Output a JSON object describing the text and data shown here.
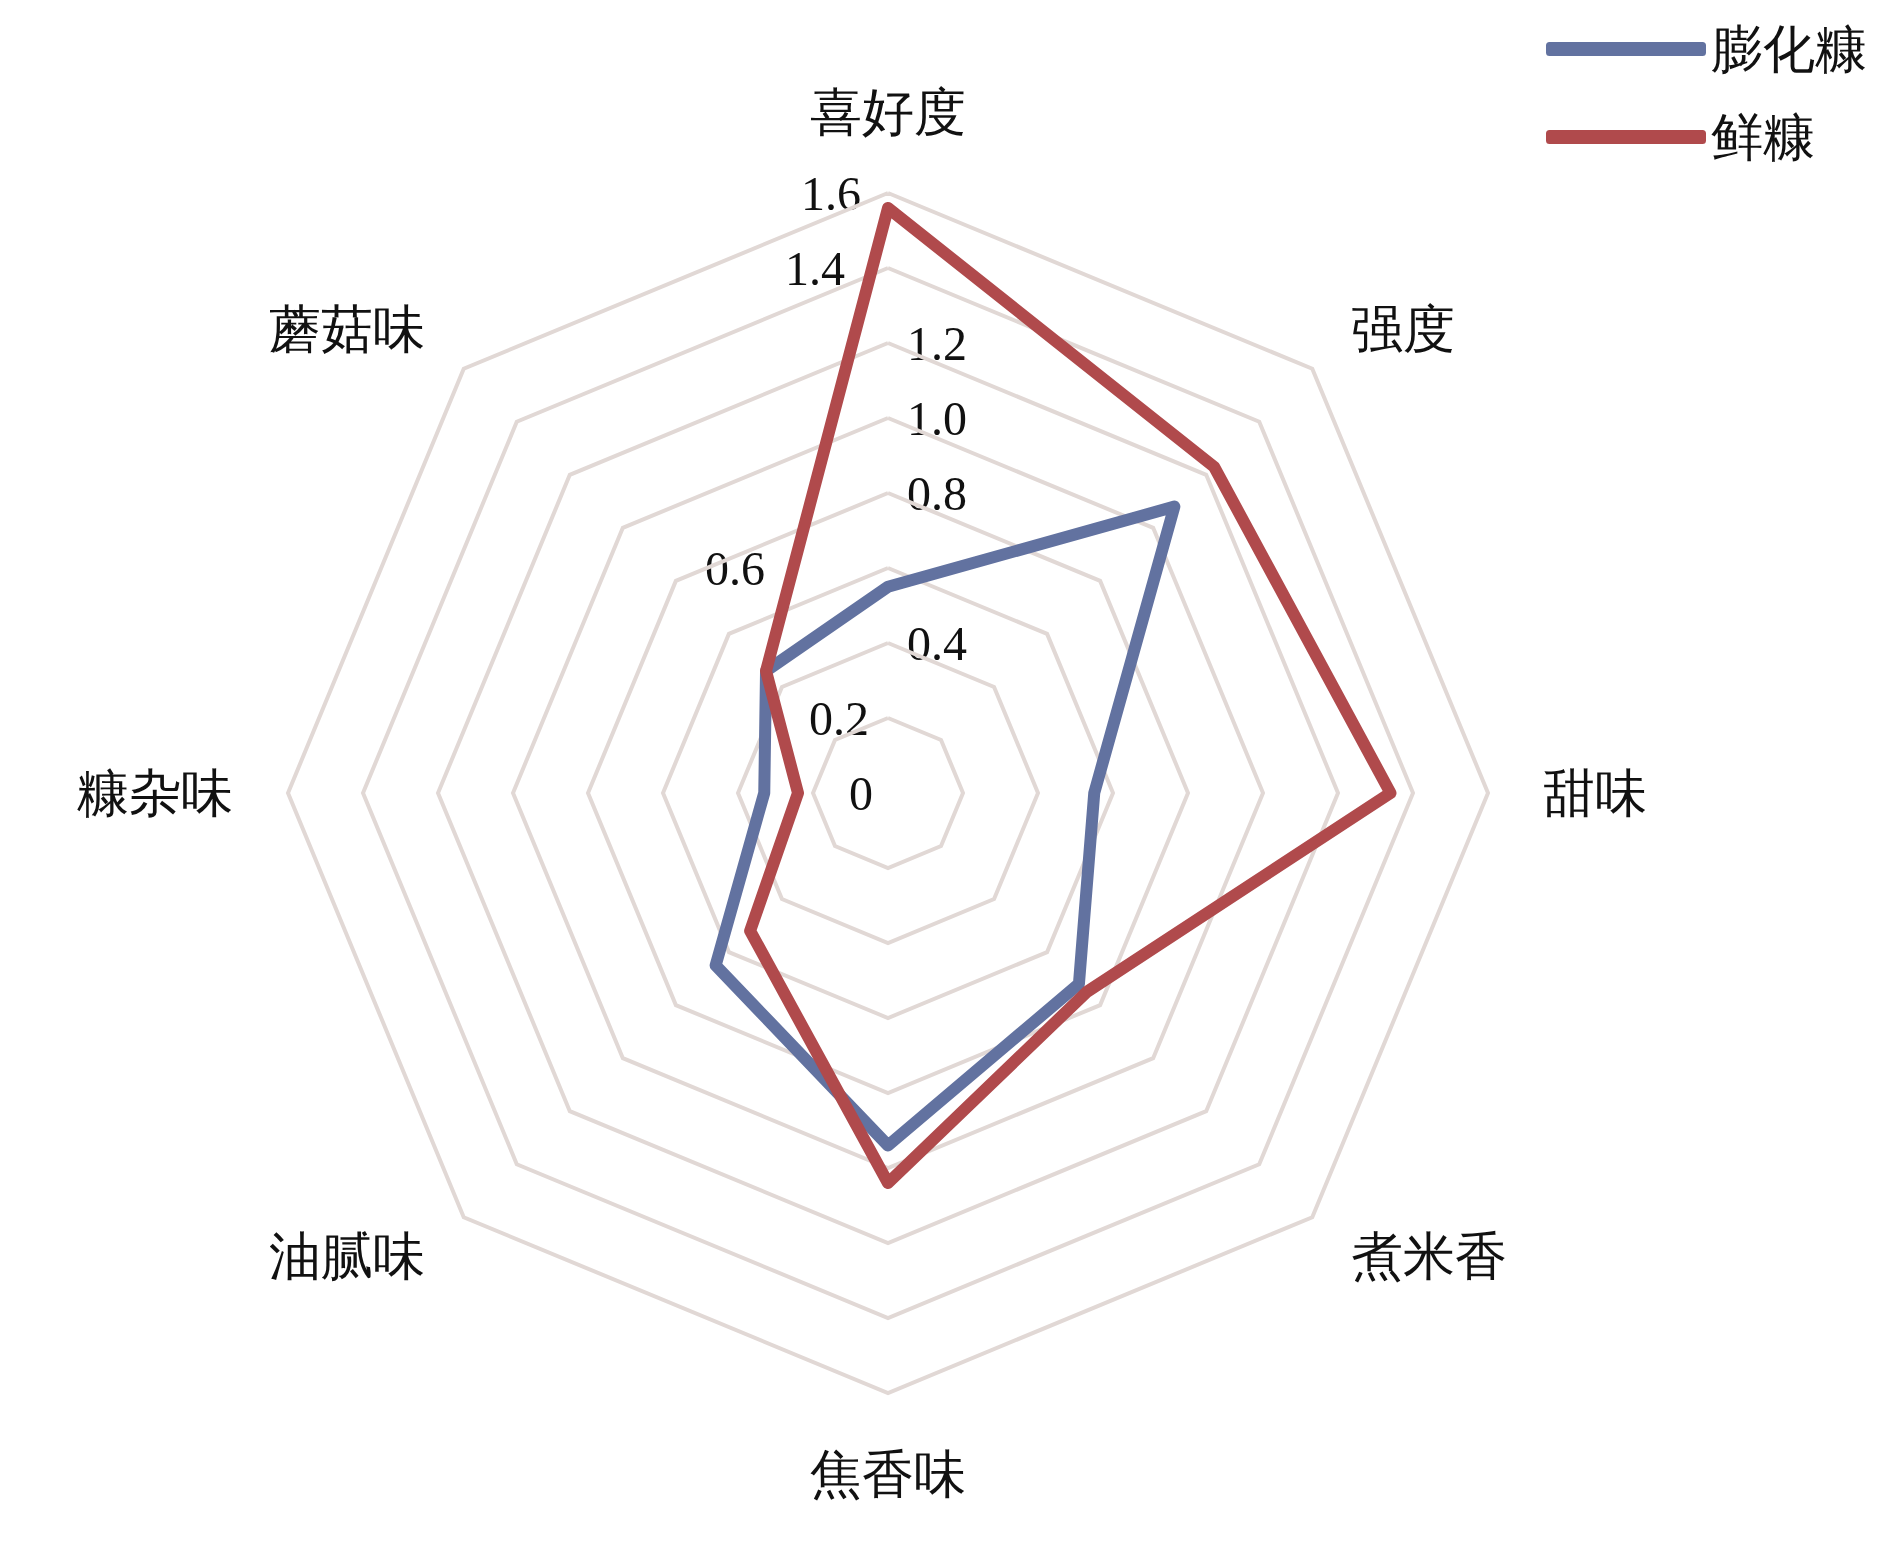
{
  "chart_data": {
    "type": "radar",
    "categories": [
      "喜好度",
      "强度",
      "甜味",
      "煮米香",
      "焦香味",
      "油腻味",
      "糠杂味",
      "蘑菇味"
    ],
    "series": [
      {
        "name": "膨化糠",
        "color": "#6272a0",
        "values": [
          0.55,
          1.08,
          0.55,
          0.72,
          0.94,
          0.65,
          0.33,
          0.46
        ]
      },
      {
        "name": "鲜糠",
        "color": "#b04a4c",
        "values": [
          1.56,
          1.23,
          1.34,
          0.75,
          1.04,
          0.52,
          0.24,
          0.46
        ]
      }
    ],
    "ylim": [
      0,
      1.6
    ],
    "yticks": [
      0,
      0.2,
      0.4,
      0.6,
      0.8,
      {
        "value": 1,
        "label": "1.0"
      },
      1.2,
      1.4,
      1.6
    ],
    "grid": true,
    "legend": "top right",
    "marker": "none",
    "line_style": "solid"
  }
}
